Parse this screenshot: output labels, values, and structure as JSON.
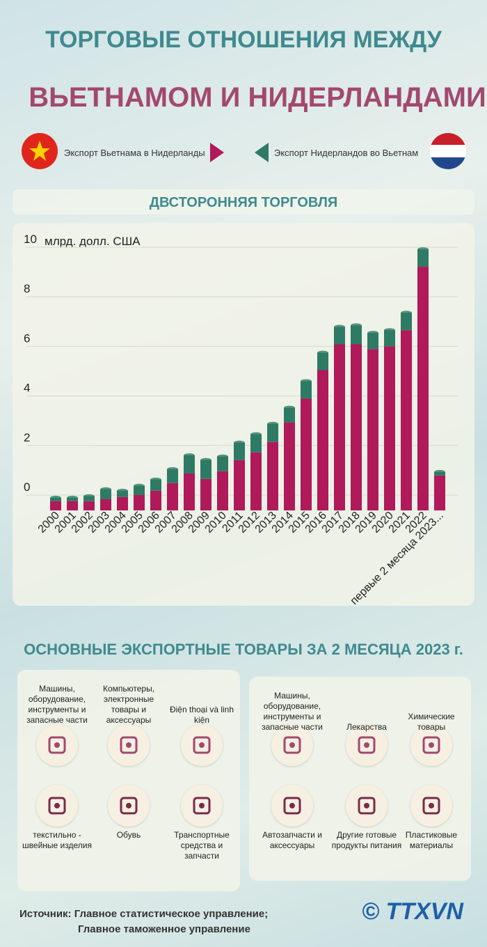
{
  "title_line1": "ТОРГОВЫЕ ОТНОШЕНИЯ МЕЖДУ",
  "title_line2": "ВЬЕТНАМОМ И НИДЕРЛАНДАМИ",
  "section_title": "ДВСТОРОННЯЯ ТОРГОВЛЯ",
  "chart_data": {
    "type": "stacked_bar",
    "y_label": "млрд. долл. США",
    "categories": [
      "2000",
      "2001",
      "2002",
      "2003",
      "2004",
      "2005",
      "2006",
      "2007",
      "2008",
      "2009",
      "2010",
      "2011",
      "2012",
      "2013",
      "2014",
      "2015",
      "2016",
      "2017",
      "2018",
      "2019",
      "2020",
      "2021",
      "2022",
      "первые 2 месяца 2023..."
    ],
    "series": [
      {
        "name": "Экспорт Вьетнама в Нидерланды",
        "color": "#b0195a",
        "values": [
          0.37,
          0.37,
          0.37,
          0.45,
          0.54,
          0.62,
          0.79,
          1.1,
          1.49,
          1.27,
          1.58,
          2.03,
          2.34,
          2.76,
          3.55,
          4.51,
          5.66,
          6.7,
          6.7,
          6.51,
          6.62,
          7.27,
          9.83,
          1.41
        ]
      },
      {
        "name": "Экспорт Нидерландов во Вьетнам",
        "color": "#2e7a64",
        "values": [
          0.14,
          0.14,
          0.2,
          0.4,
          0.25,
          0.37,
          0.45,
          0.56,
          0.73,
          0.76,
          0.59,
          0.7,
          0.73,
          0.73,
          0.59,
          0.7,
          0.7,
          0.7,
          0.76,
          0.65,
          0.65,
          0.7,
          0.7,
          0.14
        ]
      }
    ],
    "ylim": [
      0,
      10
    ],
    "yticks": [
      0,
      2,
      4,
      6,
      8,
      10
    ],
    "grid": true
  },
  "products": {
    "title": "ОСНОВНЫЕ ЭКСПОРТНЫЕ ТОВАРЫ ЗА 2 МЕСЯЦА 2023 г.",
    "left": [
      "Машины, оборудование, инструменты и запасные части",
      "Компьютеры, электронные товары и аксессуары",
      "Điện thoại và linh kiện",
      "текстильно - швейные изделия",
      "Обувь",
      "Транспортные средства и запчасти"
    ],
    "right": [
      "Машины, оборудование, инструменты и запасные части",
      "Лекарства",
      "Химические товары",
      "Автозапчасти и аксессуары",
      "Другие готовые продукты питания",
      "Пластиковые материалы"
    ]
  },
  "source": [
    "Источник: Главное статистическое управление;",
    "Главное таможенное управление"
  ],
  "logo": "TTXVN"
}
